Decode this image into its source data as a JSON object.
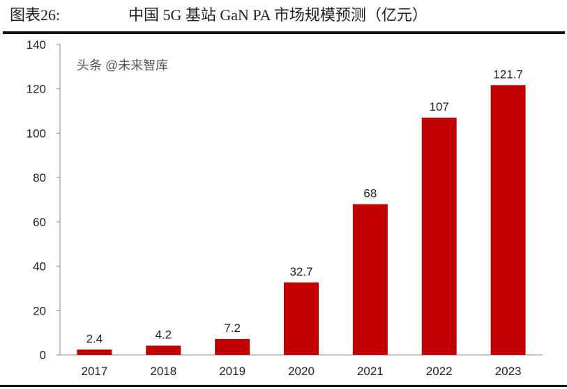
{
  "title": {
    "label": "图表26:",
    "text": "中国 5G 基站 GaN PA 市场规模预测（亿元）"
  },
  "watermark": "头条 @未来智库",
  "chart_data": {
    "type": "bar",
    "title": "中国 5G 基站 GaN PA 市场规模预测（亿元）",
    "categories": [
      "2017",
      "2018",
      "2019",
      "2020",
      "2021",
      "2022",
      "2023"
    ],
    "values": [
      2.4,
      4.2,
      7.2,
      32.7,
      68,
      107,
      121.7
    ],
    "data_labels": [
      "2.4",
      "4.2",
      "7.2",
      "32.7",
      "68",
      "107",
      "121.7"
    ],
    "ylim": [
      0,
      140
    ],
    "yticks": [
      0,
      20,
      40,
      60,
      80,
      100,
      120,
      140
    ],
    "grid": false,
    "bar_color": "#c00000"
  }
}
